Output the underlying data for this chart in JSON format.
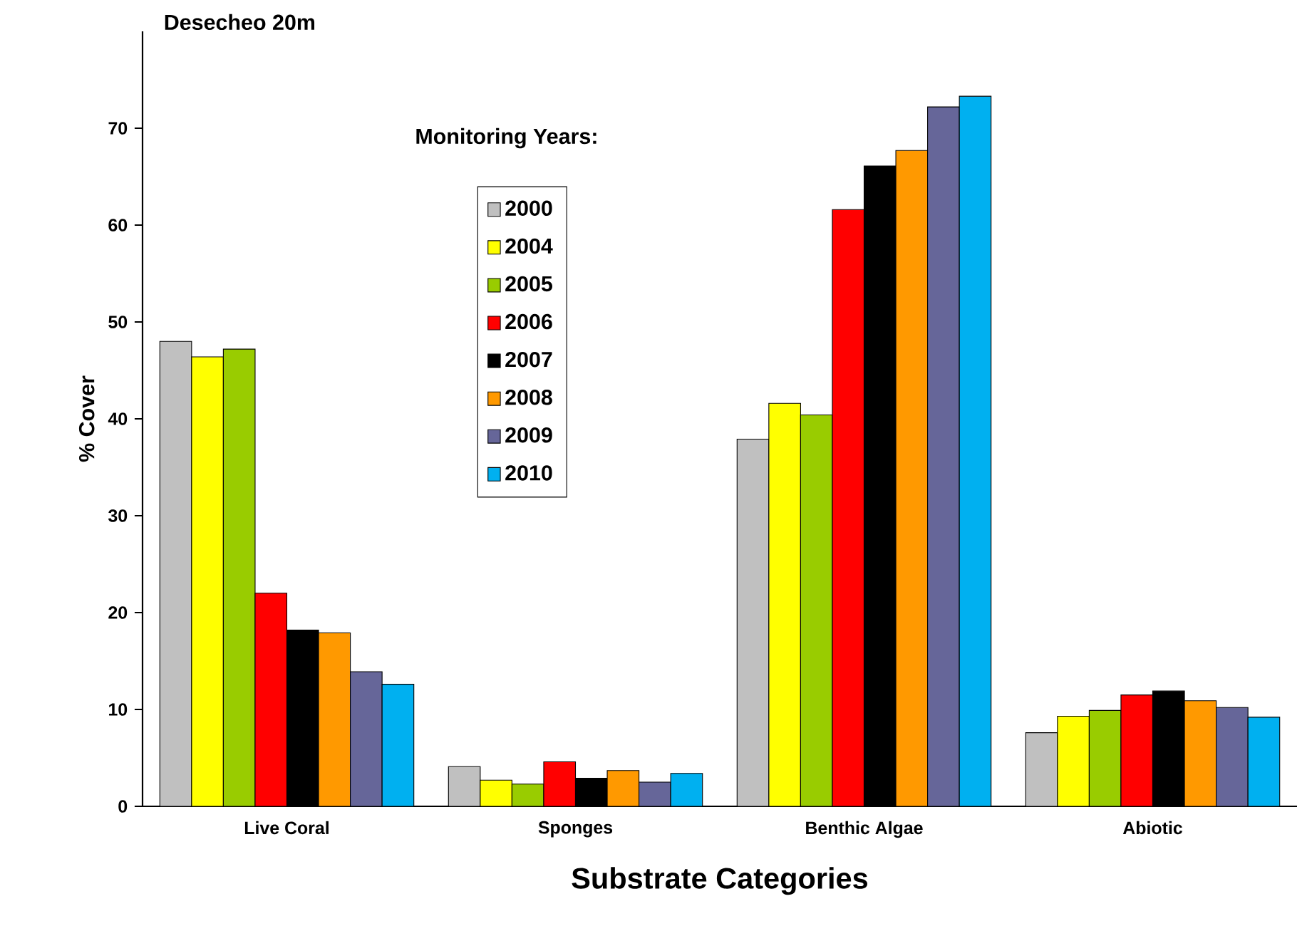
{
  "chart_data": {
    "type": "bar",
    "title": "Desecheo 20m",
    "xlabel": "Substrate Categories",
    "ylabel": "% Cover",
    "legend_title": "Monitoring Years:",
    "categories": [
      "Live Coral",
      "Sponges",
      "Benthic Algae",
      "Abiotic"
    ],
    "series": [
      {
        "name": "2000",
        "color": "#c0c0c0",
        "values": [
          48.0,
          4.1,
          37.9,
          7.6
        ]
      },
      {
        "name": "2004",
        "color": "#ffff00",
        "values": [
          46.4,
          2.7,
          41.6,
          9.3
        ]
      },
      {
        "name": "2005",
        "color": "#99cc00",
        "values": [
          47.2,
          2.3,
          40.4,
          9.9
        ]
      },
      {
        "name": "2006",
        "color": "#ff0000",
        "values": [
          22.0,
          4.6,
          61.6,
          11.5
        ]
      },
      {
        "name": "2007",
        "color": "#000000",
        "values": [
          18.2,
          2.9,
          66.1,
          11.9
        ]
      },
      {
        "name": "2008",
        "color": "#ff9900",
        "values": [
          17.9,
          3.7,
          67.7,
          10.9
        ]
      },
      {
        "name": "2009",
        "color": "#666699",
        "values": [
          13.9,
          2.5,
          72.2,
          10.2
        ]
      },
      {
        "name": "2010",
        "color": "#00b0f0",
        "values": [
          12.6,
          3.4,
          73.3,
          9.2
        ]
      }
    ],
    "ylim": [
      0,
      80
    ],
    "yticks": [
      0,
      10,
      20,
      30,
      40,
      50,
      60,
      70
    ],
    "grid": false,
    "legend": "top left"
  }
}
